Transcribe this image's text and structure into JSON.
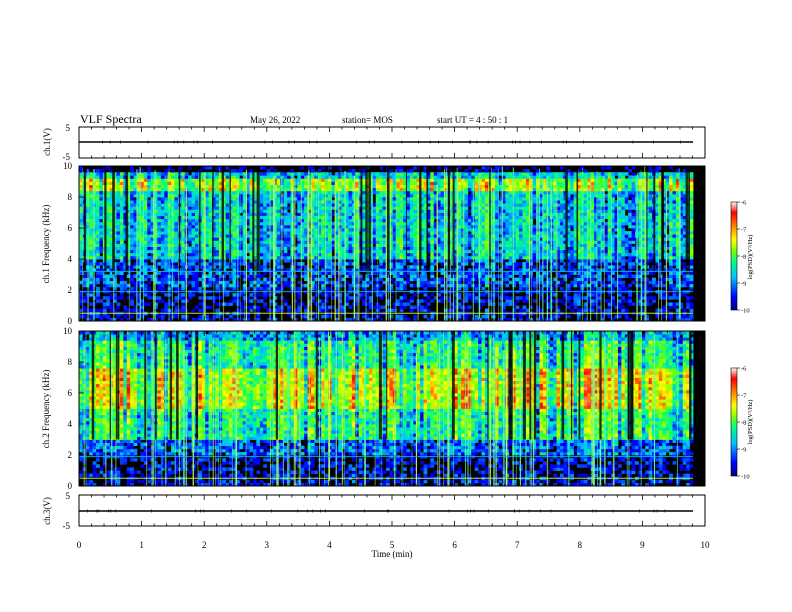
{
  "header": {
    "title": "VLF Spectra",
    "date": "May 26, 2022",
    "station": "station= MOS",
    "start_ut": "start UT =  4 : 50 : 1"
  },
  "chart_data": [
    {
      "type": "line",
      "name": "ch1-waveform",
      "ylabel": "ch.1(V)",
      "ylim": [
        -5,
        5
      ],
      "yticks": [
        "5",
        "-5"
      ],
      "x": [
        0,
        10
      ],
      "values": [
        0,
        0
      ]
    },
    {
      "type": "heatmap",
      "name": "ch1-spectrogram",
      "ylabel": "ch.1  Frequency (kHz)",
      "xlim": [
        0,
        10
      ],
      "ylim": [
        0,
        10
      ],
      "yticks": [
        "0",
        "2",
        "4",
        "6",
        "8",
        "10"
      ],
      "colorbar": {
        "label": "log(PSD)(V²/Hz)",
        "range": [
          -10,
          -6
        ],
        "ticks": [
          "-6",
          "-7",
          "-8",
          "-9",
          "-10"
        ]
      },
      "dominant_band_khz": [
        4,
        9.5
      ],
      "strongest_band_khz": [
        8.3,
        9.2
      ],
      "narrowband_lines_khz": [
        0.5,
        1.9,
        3.2
      ]
    },
    {
      "type": "heatmap",
      "name": "ch2-spectrogram",
      "ylabel": "ch.2  Frequency (kHz)",
      "xlim": [
        0,
        10
      ],
      "ylim": [
        0,
        10
      ],
      "yticks": [
        "0",
        "2",
        "4",
        "6",
        "8",
        "10"
      ],
      "colorbar": {
        "label": "log(PSD)(V²/Hz)",
        "range": [
          -10,
          -6
        ],
        "ticks": [
          "-6",
          "-7",
          "-8",
          "-9",
          "-10"
        ]
      },
      "dominant_band_khz": [
        3,
        9
      ],
      "strongest_band_khz": [
        5,
        7.5
      ],
      "narrowband_lines_khz": [
        0.5,
        1.9
      ]
    },
    {
      "type": "line",
      "name": "ch3-waveform",
      "ylabel": "ch.3(V)",
      "ylim": [
        -5,
        5
      ],
      "yticks": [
        "5",
        "-5"
      ],
      "x": [
        0,
        10
      ],
      "values": [
        0,
        0
      ]
    }
  ],
  "xaxis": {
    "label": "Time (min)",
    "ticks": [
      "0",
      "1",
      "2",
      "3",
      "4",
      "5",
      "6",
      "7",
      "8",
      "9",
      "10"
    ]
  },
  "colors": {
    "background": "#000000",
    "colormap": [
      "#00007f",
      "#0000ff",
      "#00c0ff",
      "#00ff80",
      "#80ff00",
      "#ffff00",
      "#ff8000",
      "#ff0000",
      "#ffffff"
    ]
  }
}
